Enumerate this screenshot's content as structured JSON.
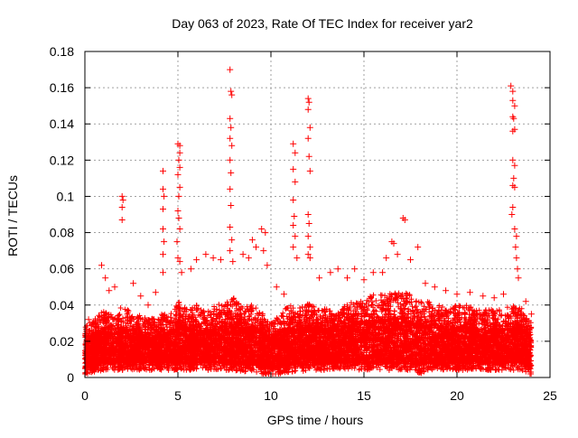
{
  "chart_data": {
    "type": "scatter",
    "title": "Day 063 of 2023, Rate Of TEC Index for receiver yar2",
    "xlabel": "GPS time / hours",
    "ylabel": "ROTI / TECUs",
    "xlim": [
      0,
      25
    ],
    "ylim": [
      0,
      0.18
    ],
    "x_ticks": [
      "0",
      "5",
      "10",
      "15",
      "20",
      "25"
    ],
    "y_ticks": [
      "0",
      "0.02",
      "0.04",
      "0.06",
      "0.08",
      "0.1",
      "0.12",
      "0.14",
      "0.16",
      "0.18"
    ],
    "grid": true,
    "marker": "+",
    "color": "#ff0000",
    "series": [
      {
        "points": [
          [
            0.2,
            0.032
          ],
          [
            0.4,
            0.03
          ],
          [
            0.9,
            0.062
          ],
          [
            1.1,
            0.055
          ],
          [
            1.3,
            0.048
          ],
          [
            1.6,
            0.05
          ],
          [
            2.0,
            0.1
          ],
          [
            2.05,
            0.098
          ],
          [
            2.0,
            0.094
          ],
          [
            2.0,
            0.087
          ],
          [
            2.6,
            0.052
          ],
          [
            3.0,
            0.045
          ],
          [
            3.4,
            0.04
          ],
          [
            3.8,
            0.047
          ],
          [
            4.2,
            0.114
          ],
          [
            4.2,
            0.104
          ],
          [
            4.25,
            0.1
          ],
          [
            4.2,
            0.093
          ],
          [
            4.2,
            0.082
          ],
          [
            4.25,
            0.075
          ],
          [
            4.2,
            0.068
          ],
          [
            4.2,
            0.058
          ],
          [
            5.0,
            0.129
          ],
          [
            5.1,
            0.128
          ],
          [
            5.1,
            0.124
          ],
          [
            5.05,
            0.12
          ],
          [
            5.1,
            0.116
          ],
          [
            5.0,
            0.112
          ],
          [
            5.1,
            0.105
          ],
          [
            5.05,
            0.1
          ],
          [
            5.0,
            0.092
          ],
          [
            5.05,
            0.088
          ],
          [
            5.1,
            0.082
          ],
          [
            4.95,
            0.075
          ],
          [
            5.0,
            0.066
          ],
          [
            5.1,
            0.064
          ],
          [
            5.2,
            0.058
          ],
          [
            5.7,
            0.06
          ],
          [
            6.0,
            0.065
          ],
          [
            6.5,
            0.068
          ],
          [
            6.9,
            0.066
          ],
          [
            7.3,
            0.065
          ],
          [
            7.8,
            0.17
          ],
          [
            7.85,
            0.158
          ],
          [
            7.9,
            0.156
          ],
          [
            7.8,
            0.143
          ],
          [
            7.85,
            0.138
          ],
          [
            7.8,
            0.132
          ],
          [
            7.9,
            0.128
          ],
          [
            7.8,
            0.12
          ],
          [
            7.85,
            0.113
          ],
          [
            7.8,
            0.104
          ],
          [
            7.85,
            0.095
          ],
          [
            7.8,
            0.083
          ],
          [
            7.9,
            0.076
          ],
          [
            7.8,
            0.07
          ],
          [
            7.95,
            0.064
          ],
          [
            8.5,
            0.068
          ],
          [
            8.8,
            0.066
          ],
          [
            9.0,
            0.076
          ],
          [
            9.2,
            0.072
          ],
          [
            9.5,
            0.082
          ],
          [
            9.7,
            0.08
          ],
          [
            9.6,
            0.07
          ],
          [
            9.8,
            0.062
          ],
          [
            10.3,
            0.05
          ],
          [
            10.7,
            0.046
          ],
          [
            11.2,
            0.129
          ],
          [
            11.3,
            0.124
          ],
          [
            11.2,
            0.115
          ],
          [
            11.3,
            0.108
          ],
          [
            11.2,
            0.098
          ],
          [
            11.25,
            0.089
          ],
          [
            11.2,
            0.084
          ],
          [
            11.3,
            0.078
          ],
          [
            11.2,
            0.072
          ],
          [
            11.4,
            0.066
          ],
          [
            12.0,
            0.154
          ],
          [
            12.05,
            0.152
          ],
          [
            12.0,
            0.148
          ],
          [
            12.1,
            0.138
          ],
          [
            12.0,
            0.132
          ],
          [
            12.05,
            0.122
          ],
          [
            12.1,
            0.114
          ],
          [
            12.0,
            0.09
          ],
          [
            12.05,
            0.085
          ],
          [
            12.0,
            0.078
          ],
          [
            12.1,
            0.072
          ],
          [
            12.0,
            0.068
          ],
          [
            12.1,
            0.066
          ],
          [
            12.6,
            0.055
          ],
          [
            13.2,
            0.058
          ],
          [
            13.6,
            0.06
          ],
          [
            14.1,
            0.055
          ],
          [
            14.5,
            0.06
          ],
          [
            15.0,
            0.054
          ],
          [
            15.5,
            0.058
          ],
          [
            16.0,
            0.058
          ],
          [
            16.2,
            0.066
          ],
          [
            16.5,
            0.075
          ],
          [
            16.6,
            0.074
          ],
          [
            16.8,
            0.068
          ],
          [
            17.1,
            0.088
          ],
          [
            17.2,
            0.087
          ],
          [
            17.5,
            0.065
          ],
          [
            17.9,
            0.072
          ],
          [
            18.3,
            0.052
          ],
          [
            18.8,
            0.05
          ],
          [
            19.4,
            0.048
          ],
          [
            20.0,
            0.046
          ],
          [
            20.7,
            0.047
          ],
          [
            21.4,
            0.045
          ],
          [
            22.0,
            0.044
          ],
          [
            22.5,
            0.046
          ],
          [
            22.9,
            0.161
          ],
          [
            23.0,
            0.158
          ],
          [
            23.0,
            0.153
          ],
          [
            23.1,
            0.15
          ],
          [
            23.0,
            0.144
          ],
          [
            23.05,
            0.143
          ],
          [
            23.1,
            0.137
          ],
          [
            23.0,
            0.136
          ],
          [
            23.0,
            0.12
          ],
          [
            23.1,
            0.117
          ],
          [
            23.05,
            0.11
          ],
          [
            23.0,
            0.106
          ],
          [
            23.1,
            0.105
          ],
          [
            23.0,
            0.094
          ],
          [
            22.95,
            0.09
          ],
          [
            23.1,
            0.082
          ],
          [
            23.2,
            0.078
          ],
          [
            23.15,
            0.072
          ],
          [
            23.2,
            0.066
          ],
          [
            23.25,
            0.06
          ],
          [
            23.3,
            0.055
          ],
          [
            23.7,
            0.042
          ],
          [
            24.0,
            0.035
          ]
        ]
      }
    ],
    "band": {
      "x": [
        0.0,
        0.5,
        1.0,
        1.5,
        2.0,
        2.5,
        3.0,
        3.5,
        4.0,
        4.5,
        5.0,
        5.5,
        6.0,
        6.5,
        7.0,
        7.5,
        8.0,
        8.5,
        9.0,
        9.5,
        10.0,
        10.5,
        11.0,
        11.5,
        12.0,
        12.5,
        13.0,
        13.5,
        14.0,
        14.5,
        15.0,
        15.5,
        16.0,
        16.5,
        17.0,
        17.5,
        18.0,
        18.5,
        19.0,
        19.5,
        20.0,
        20.5,
        21.0,
        21.5,
        22.0,
        22.5,
        23.0,
        23.5,
        24.0
      ],
      "low": [
        0.005,
        0.007,
        0.008,
        0.008,
        0.008,
        0.008,
        0.008,
        0.008,
        0.008,
        0.008,
        0.008,
        0.008,
        0.008,
        0.008,
        0.008,
        0.008,
        0.008,
        0.007,
        0.007,
        0.006,
        0.004,
        0.006,
        0.007,
        0.007,
        0.008,
        0.008,
        0.008,
        0.008,
        0.008,
        0.008,
        0.008,
        0.008,
        0.008,
        0.008,
        0.008,
        0.008,
        0.006,
        0.008,
        0.008,
        0.008,
        0.008,
        0.008,
        0.008,
        0.008,
        0.008,
        0.008,
        0.008,
        0.008,
        0.005
      ],
      "high": [
        0.028,
        0.032,
        0.038,
        0.034,
        0.04,
        0.036,
        0.034,
        0.032,
        0.036,
        0.034,
        0.042,
        0.038,
        0.04,
        0.036,
        0.04,
        0.042,
        0.044,
        0.04,
        0.04,
        0.036,
        0.03,
        0.036,
        0.04,
        0.038,
        0.042,
        0.038,
        0.038,
        0.036,
        0.04,
        0.042,
        0.044,
        0.046,
        0.046,
        0.048,
        0.048,
        0.046,
        0.042,
        0.042,
        0.04,
        0.038,
        0.04,
        0.04,
        0.038,
        0.038,
        0.038,
        0.038,
        0.04,
        0.038,
        0.03
      ],
      "dense_high": [
        0.018,
        0.022,
        0.025,
        0.024,
        0.026,
        0.024,
        0.023,
        0.022,
        0.024,
        0.023,
        0.028,
        0.026,
        0.026,
        0.024,
        0.026,
        0.028,
        0.028,
        0.026,
        0.026,
        0.024,
        0.02,
        0.024,
        0.026,
        0.025,
        0.028,
        0.026,
        0.026,
        0.026,
        0.028,
        0.028,
        0.03,
        0.03,
        0.03,
        0.032,
        0.032,
        0.03,
        0.028,
        0.028,
        0.027,
        0.026,
        0.027,
        0.027,
        0.026,
        0.026,
        0.026,
        0.026,
        0.027,
        0.026,
        0.02
      ]
    }
  }
}
